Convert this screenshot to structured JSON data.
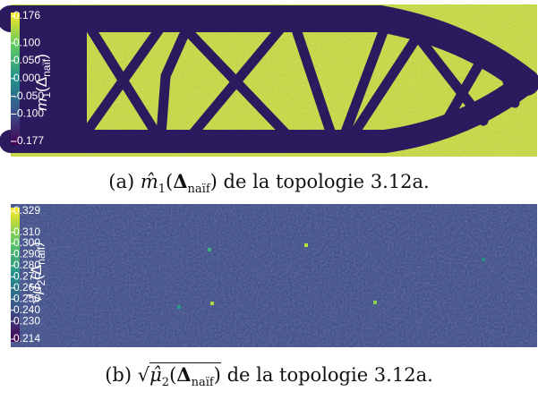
{
  "figures": [
    {
      "colorbar": {
        "max": 0.176,
        "min": -0.177,
        "ticks": [
          {
            "value": 0.1,
            "label": "0.100"
          },
          {
            "value": 0.05,
            "label": "0.050"
          },
          {
            "value": 0,
            "label": "0.000"
          },
          {
            "value": -0.05,
            "label": "-0.050"
          },
          {
            "value": -0.1,
            "label": "-0.100"
          }
        ],
        "title": {
          "symbol": "m",
          "index": "1",
          "open": "(",
          "delta": "Δ",
          "sub": "naïf",
          "close": ")"
        }
      },
      "caption": {
        "label": "(a)",
        "symbol": "m̂",
        "index": "1",
        "open": "(",
        "delta": "Δ",
        "sub": "naïf",
        "close": ")",
        "rest": "de la topologie 3.12a."
      }
    },
    {
      "colorbar": {
        "max": 0.329,
        "min": 0.214,
        "ticks": [
          {
            "value": 0.31,
            "label": "0.310"
          },
          {
            "value": 0.3,
            "label": "0.300"
          },
          {
            "value": 0.29,
            "label": "0.290"
          },
          {
            "value": 0.28,
            "label": "0.280"
          },
          {
            "value": 0.27,
            "label": "0.270"
          },
          {
            "value": 0.26,
            "label": "0.260"
          },
          {
            "value": 0.25,
            "label": "0.250"
          },
          {
            "value": 0.24,
            "label": "0.240"
          },
          {
            "value": 0.23,
            "label": "0.230"
          }
        ],
        "title": {
          "radical": "√",
          "symbol": "μ̂",
          "index": "2",
          "open": "(",
          "delta": "Δ",
          "sub": "naïf",
          "close": ")"
        }
      },
      "caption": {
        "label": "(b)",
        "radical": "√",
        "symbol": "μ̂",
        "index": "2",
        "open": "(",
        "delta": "Δ",
        "sub": "naïf",
        "close": ")",
        "rest": "de la topologie 3.12a."
      }
    }
  ]
}
